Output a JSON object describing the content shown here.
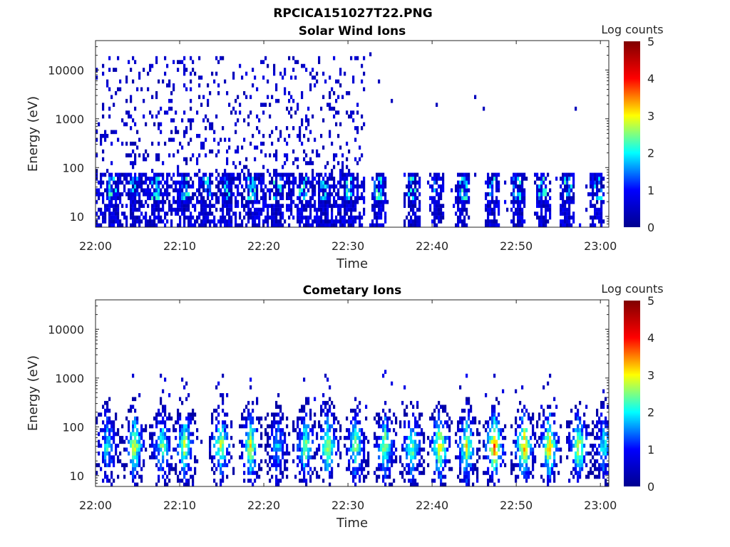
{
  "title": "RPCICA151027T22.PNG",
  "colorscale": {
    "name": "jet",
    "stops": [
      "#00008f",
      "#0000ff",
      "#00ffff",
      "#ffff00",
      "#ff0000",
      "#800000"
    ]
  },
  "chart_data": [
    {
      "type": "heatmap",
      "title": "Solar Wind Ions",
      "xlabel": "Time",
      "ylabel": "Energy (eV)",
      "xticks": [
        "22:00",
        "22:10",
        "22:20",
        "22:30",
        "22:40",
        "22:50",
        "23:00"
      ],
      "xlim_minutes": [
        0,
        61
      ],
      "yticks": [
        "10",
        "100",
        "1000",
        "10000"
      ],
      "yscale": "log",
      "ylim": [
        6,
        40000
      ],
      "colorbar": {
        "label": "Log counts",
        "ticks": [
          "0",
          "1",
          "2",
          "3",
          "4",
          "5"
        ],
        "range": [
          0,
          5
        ]
      },
      "pattern": {
        "dense_until_minute": 32,
        "sparse_hits_after": [
          [
            32.5,
            20000
          ],
          [
            33.5,
            6000
          ],
          [
            35,
            2200
          ],
          [
            40.5,
            2000
          ],
          [
            45,
            3000
          ],
          [
            46,
            1500
          ],
          [
            57,
            1700
          ]
        ],
        "low_energy_bursts_minutes": [
          2,
          4.5,
          7,
          10.5,
          13,
          15.5,
          18.5,
          21.5,
          24.5,
          27,
          30,
          33.5,
          37.5,
          40.5,
          43.5,
          47,
          50,
          53,
          56,
          59.5
        ],
        "max_log_counts": 2.3
      }
    },
    {
      "type": "heatmap",
      "title": "Cometary Ions",
      "xlabel": "Time",
      "ylabel": "Energy (eV)",
      "xticks": [
        "22:00",
        "22:10",
        "22:20",
        "22:30",
        "22:40",
        "22:50",
        "23:00"
      ],
      "xlim_minutes": [
        0,
        61
      ],
      "yticks": [
        "10",
        "100",
        "1000",
        "10000"
      ],
      "yscale": "log",
      "ylim": [
        6,
        40000
      ],
      "colorbar": {
        "label": "Log counts",
        "ticks": [
          "0",
          "1",
          "2",
          "3",
          "4",
          "5"
        ],
        "range": [
          0,
          5
        ]
      },
      "pattern": {
        "bursts": [
          {
            "minute": 1.3,
            "peak_log": 2.1
          },
          {
            "minute": 4.5,
            "peak_log": 3.0
          },
          {
            "minute": 7.8,
            "peak_log": 2.5
          },
          {
            "minute": 10.5,
            "peak_log": 3.0
          },
          {
            "minute": 14.8,
            "peak_log": 3.0
          },
          {
            "minute": 18.3,
            "peak_log": 3.0
          },
          {
            "minute": 21.5,
            "peak_log": 2.0
          },
          {
            "minute": 24.8,
            "peak_log": 2.7
          },
          {
            "minute": 27.5,
            "peak_log": 2.8
          },
          {
            "minute": 30.8,
            "peak_log": 2.6
          },
          {
            "minute": 34.3,
            "peak_log": 2.8
          },
          {
            "minute": 37.5,
            "peak_log": 2.7
          },
          {
            "minute": 40.8,
            "peak_log": 3.4
          },
          {
            "minute": 44,
            "peak_log": 3.0
          },
          {
            "minute": 47.3,
            "peak_log": 3.7
          },
          {
            "minute": 50.8,
            "peak_log": 3.5
          },
          {
            "minute": 53.8,
            "peak_log": 3.4
          },
          {
            "minute": 57.3,
            "peak_log": 3.1
          },
          {
            "minute": 60.3,
            "peak_log": 2.2
          }
        ],
        "peak_energy_eV": 40
      }
    }
  ]
}
